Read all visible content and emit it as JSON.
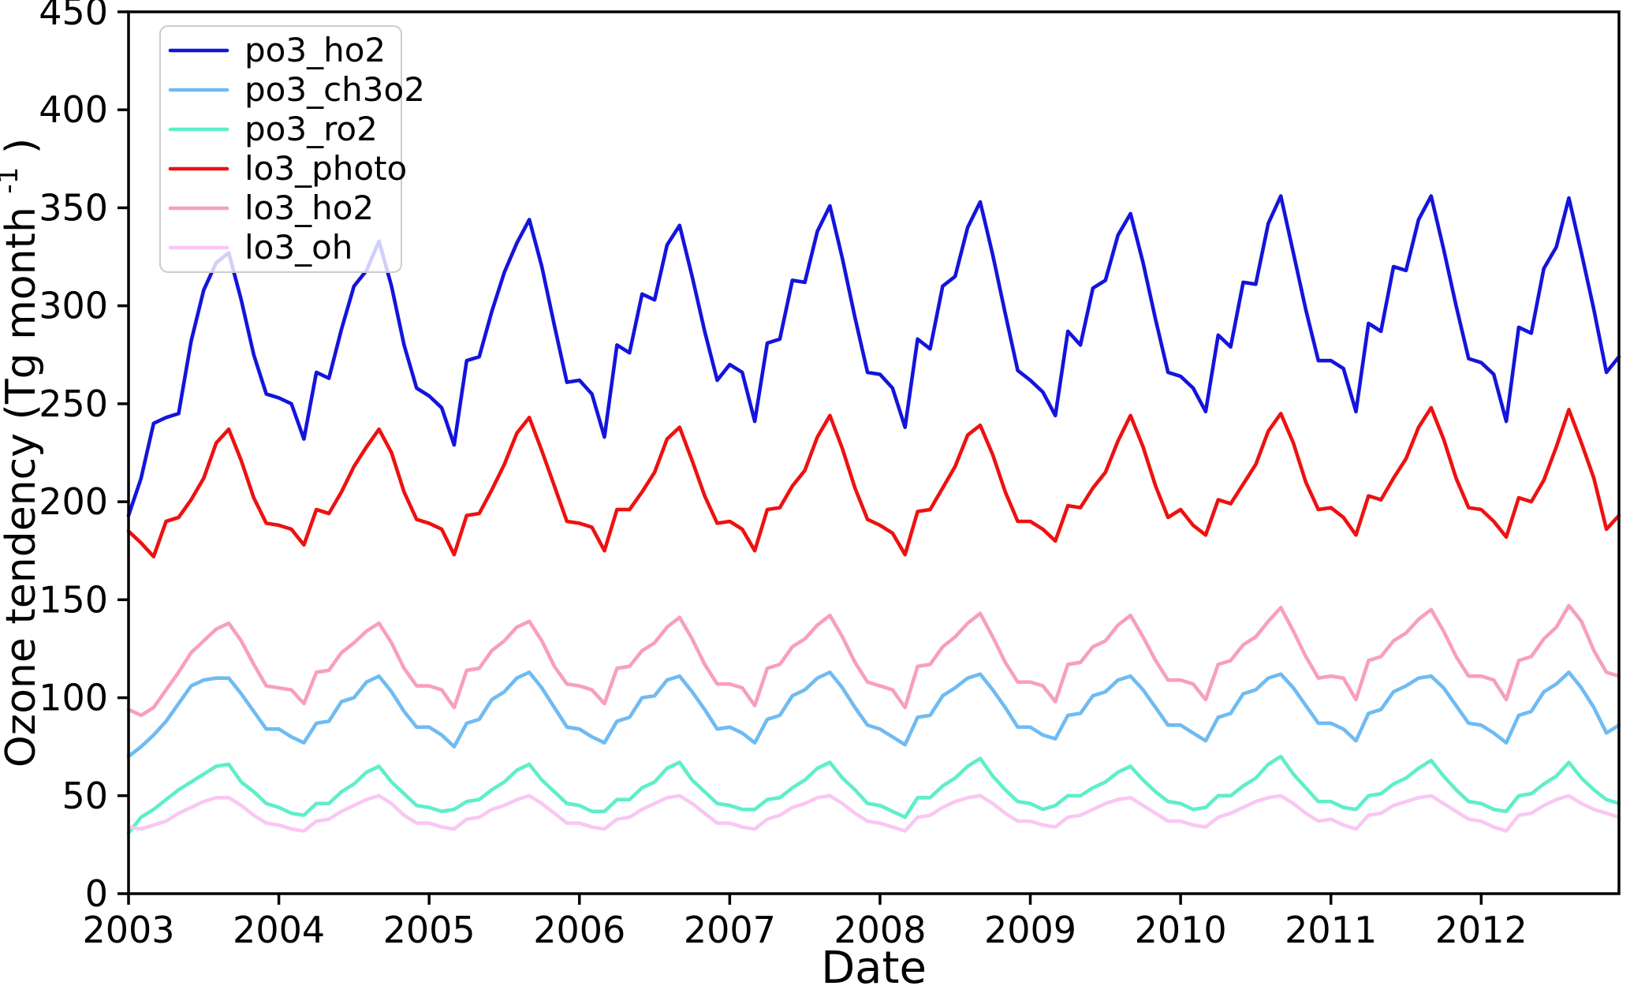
{
  "chart_data": {
    "type": "line",
    "title": "",
    "xlabel": "Date",
    "ylabel_base": "Ozone tendency (Tg month",
    "ylabel_superscript": "-1",
    "ylabel_close": ")",
    "axis_color": "#000000",
    "background_color": "#ffffff",
    "grid": false,
    "legend_position": "upper-left",
    "legend_border_color": "#cccccc",
    "ylim": [
      0,
      450
    ],
    "yticks": [
      0,
      50,
      100,
      150,
      200,
      250,
      300,
      350,
      400,
      450
    ],
    "xticks": [
      2003,
      2004,
      2005,
      2006,
      2007,
      2008,
      2009,
      2010,
      2011,
      2012
    ],
    "x_start_year": 2003,
    "x_end_year": 2012,
    "points_per_year": 12,
    "n_points": 120,
    "series": [
      {
        "name": "po3_ho2",
        "color": "#1414dc",
        "values": [
          193,
          212,
          240,
          243,
          245,
          282,
          308,
          322,
          327,
          303,
          275,
          255,
          253,
          250,
          232,
          266,
          263,
          288,
          310,
          318,
          333,
          310,
          280,
          258,
          254,
          248,
          229,
          272,
          274,
          297,
          317,
          332,
          344,
          320,
          290,
          261,
          262,
          255,
          233,
          280,
          276,
          306,
          303,
          331,
          341,
          315,
          287,
          262,
          270,
          266,
          241,
          281,
          283,
          313,
          312,
          338,
          351,
          324,
          294,
          266,
          265,
          258,
          238,
          283,
          278,
          310,
          315,
          340,
          353,
          326,
          296,
          267,
          262,
          256,
          244,
          287,
          280,
          309,
          313,
          336,
          347,
          322,
          293,
          266,
          264,
          258,
          246,
          285,
          279,
          312,
          311,
          342,
          356,
          327,
          298,
          272,
          272,
          268,
          246,
          291,
          287,
          320,
          318,
          344,
          356,
          329,
          300,
          273,
          271,
          265,
          241,
          289,
          286,
          319,
          330,
          355,
          327,
          298,
          266,
          274
        ]
      },
      {
        "name": "po3_ch3o2",
        "color": "#6fbbf2",
        "values": [
          70,
          75,
          81,
          88,
          97,
          106,
          109,
          110,
          110,
          102,
          93,
          84,
          84,
          80,
          77,
          87,
          88,
          98,
          100,
          108,
          111,
          103,
          93,
          85,
          85,
          81,
          75,
          87,
          89,
          99,
          103,
          110,
          113,
          105,
          95,
          85,
          84,
          80,
          77,
          88,
          90,
          100,
          101,
          109,
          111,
          103,
          94,
          84,
          85,
          82,
          77,
          89,
          91,
          101,
          104,
          110,
          113,
          105,
          95,
          86,
          84,
          80,
          76,
          90,
          91,
          101,
          105,
          110,
          112,
          104,
          95,
          85,
          85,
          81,
          79,
          91,
          92,
          101,
          103,
          109,
          111,
          104,
          95,
          86,
          86,
          82,
          78,
          90,
          92,
          102,
          104,
          110,
          112,
          105,
          96,
          87,
          87,
          84,
          78,
          92,
          94,
          103,
          106,
          110,
          111,
          105,
          96,
          87,
          86,
          82,
          77,
          91,
          93,
          103,
          107,
          113,
          105,
          95,
          82,
          86
        ]
      },
      {
        "name": "po3_ro2",
        "color": "#5feeca",
        "values": [
          31,
          39,
          43,
          48,
          53,
          57,
          61,
          65,
          66,
          57,
          52,
          46,
          44,
          41,
          40,
          46,
          46,
          52,
          56,
          62,
          65,
          57,
          51,
          45,
          44,
          42,
          43,
          47,
          48,
          53,
          57,
          63,
          66,
          58,
          52,
          46,
          45,
          42,
          42,
          48,
          48,
          54,
          57,
          64,
          67,
          58,
          52,
          46,
          45,
          43,
          43,
          48,
          49,
          54,
          58,
          64,
          67,
          59,
          53,
          46,
          45,
          42,
          39,
          49,
          49,
          55,
          59,
          65,
          69,
          60,
          53,
          47,
          46,
          43,
          45,
          50,
          50,
          54,
          57,
          62,
          65,
          58,
          52,
          47,
          46,
          43,
          44,
          50,
          50,
          55,
          59,
          66,
          70,
          61,
          54,
          47,
          47,
          44,
          43,
          50,
          51,
          56,
          59,
          64,
          68,
          60,
          53,
          47,
          46,
          43,
          42,
          50,
          51,
          56,
          60,
          67,
          59,
          53,
          48,
          46
        ]
      },
      {
        "name": "lo3_photo",
        "color": "#ee1111",
        "values": [
          185,
          179,
          172,
          190,
          192,
          201,
          212,
          230,
          237,
          221,
          202,
          189,
          188,
          186,
          178,
          196,
          194,
          205,
          218,
          228,
          237,
          225,
          205,
          191,
          189,
          186,
          173,
          193,
          194,
          206,
          219,
          235,
          243,
          226,
          208,
          190,
          189,
          187,
          175,
          196,
          196,
          205,
          215,
          232,
          238,
          221,
          203,
          189,
          190,
          186,
          175,
          196,
          197,
          208,
          216,
          233,
          244,
          227,
          207,
          191,
          188,
          184,
          173,
          195,
          196,
          207,
          218,
          234,
          239,
          224,
          205,
          190,
          190,
          186,
          180,
          198,
          197,
          207,
          215,
          231,
          244,
          228,
          208,
          192,
          196,
          188,
          183,
          201,
          199,
          209,
          219,
          236,
          245,
          230,
          210,
          196,
          197,
          192,
          183,
          203,
          201,
          212,
          222,
          238,
          248,
          232,
          212,
          197,
          196,
          190,
          182,
          202,
          200,
          211,
          228,
          247,
          230,
          212,
          186,
          193
        ]
      },
      {
        "name": "lo3_ho2",
        "color": "#f89fbd",
        "values": [
          94,
          91,
          95,
          104,
          113,
          123,
          129,
          135,
          138,
          129,
          117,
          106,
          105,
          104,
          97,
          113,
          114,
          123,
          128,
          134,
          138,
          128,
          115,
          106,
          106,
          104,
          95,
          114,
          115,
          124,
          129,
          136,
          139,
          129,
          116,
          107,
          106,
          104,
          97,
          115,
          116,
          124,
          128,
          136,
          141,
          130,
          117,
          107,
          107,
          105,
          96,
          115,
          117,
          126,
          130,
          137,
          142,
          131,
          118,
          108,
          106,
          104,
          95,
          116,
          117,
          126,
          131,
          138,
          143,
          131,
          118,
          108,
          108,
          106,
          98,
          117,
          118,
          126,
          129,
          137,
          142,
          131,
          119,
          109,
          109,
          107,
          99,
          117,
          119,
          127,
          131,
          139,
          146,
          134,
          121,
          110,
          111,
          110,
          99,
          119,
          121,
          129,
          133,
          140,
          145,
          134,
          121,
          111,
          111,
          109,
          99,
          119,
          121,
          130,
          136,
          147,
          139,
          124,
          113,
          111
        ]
      },
      {
        "name": "lo3_oh",
        "color": "#f9c7f2",
        "values": [
          34,
          33,
          35,
          37,
          41,
          44,
          47,
          49,
          49,
          45,
          40,
          36,
          35,
          33,
          32,
          37,
          38,
          42,
          45,
          48,
          50,
          46,
          40,
          36,
          36,
          34,
          33,
          38,
          39,
          43,
          45,
          48,
          50,
          46,
          41,
          36,
          36,
          34,
          33,
          38,
          39,
          43,
          46,
          49,
          50,
          46,
          41,
          36,
          36,
          34,
          33,
          38,
          40,
          44,
          46,
          49,
          50,
          46,
          41,
          37,
          36,
          34,
          32,
          39,
          40,
          44,
          47,
          49,
          50,
          46,
          41,
          37,
          37,
          35,
          34,
          39,
          40,
          43,
          46,
          48,
          49,
          45,
          41,
          37,
          37,
          35,
          34,
          39,
          41,
          44,
          47,
          49,
          50,
          46,
          41,
          37,
          38,
          35,
          33,
          40,
          41,
          45,
          47,
          49,
          50,
          46,
          42,
          38,
          37,
          34,
          32,
          40,
          41,
          45,
          48,
          50,
          46,
          43,
          41,
          39
        ]
      }
    ]
  }
}
